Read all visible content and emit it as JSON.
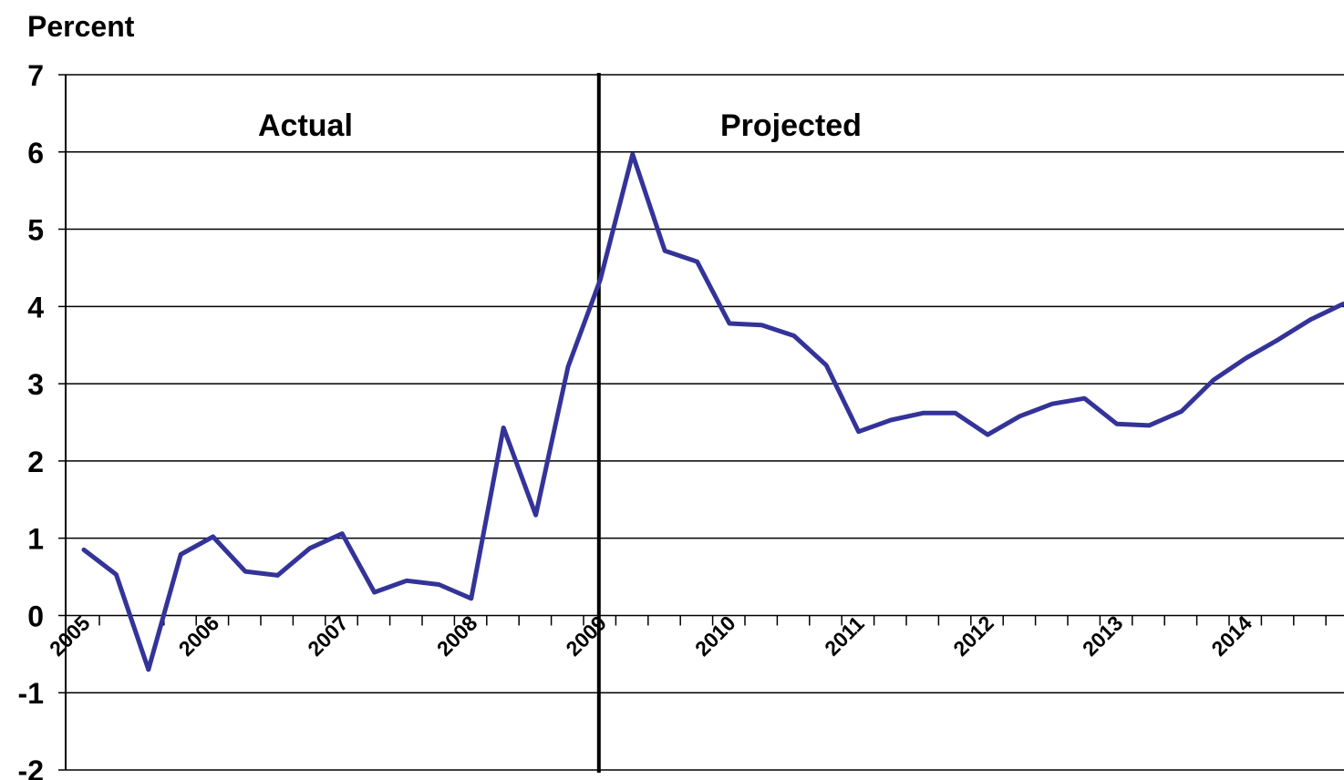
{
  "chart_data": {
    "type": "line",
    "ylabel": "Percent",
    "ylim": [
      -2,
      7
    ],
    "y_ticks": [
      "7",
      "6",
      "5",
      "4",
      "3",
      "2",
      "1",
      "0",
      "-1",
      "-2"
    ],
    "x_tick_labels": [
      "2005",
      "2006",
      "2007",
      "2008",
      "2009",
      "2010",
      "2011",
      "2012",
      "2013",
      "2014"
    ],
    "annotations": {
      "actual": "Actual",
      "projected": "Projected"
    },
    "divider_x": 2009.25,
    "grid": true,
    "series": [
      {
        "color": "#333399",
        "x": [
          2005.0,
          2005.25,
          2005.5,
          2005.75,
          2006.0,
          2006.25,
          2006.5,
          2006.75,
          2007.0,
          2007.25,
          2007.5,
          2007.75,
          2008.0,
          2008.25,
          2008.5,
          2008.75,
          2009.0,
          2009.25,
          2009.5,
          2009.75,
          2010.0,
          2010.25,
          2010.5,
          2010.75,
          2011.0,
          2011.25,
          2011.5,
          2011.75,
          2012.0,
          2012.25,
          2012.5,
          2012.75,
          2013.0,
          2013.25,
          2013.5,
          2013.75,
          2014.0,
          2014.25,
          2014.5,
          2014.75,
          2014.98
        ],
        "values": [
          0.85,
          0.53,
          -0.7,
          0.79,
          1.02,
          0.57,
          0.52,
          0.87,
          1.06,
          0.3,
          0.45,
          0.4,
          0.22,
          2.43,
          1.3,
          3.22,
          4.35,
          5.97,
          4.72,
          4.58,
          3.78,
          3.76,
          3.62,
          3.24,
          2.38,
          2.53,
          2.62,
          2.62,
          2.34,
          2.58,
          2.74,
          2.81,
          2.48,
          2.46,
          2.64,
          3.05,
          3.33,
          3.57,
          3.83,
          4.03,
          4.12
        ]
      }
    ]
  }
}
